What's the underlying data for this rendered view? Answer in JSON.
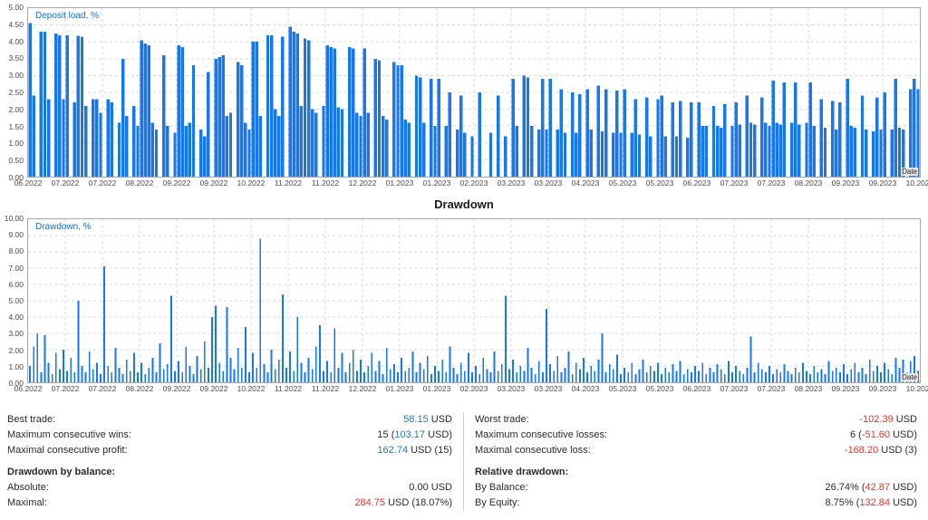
{
  "colors": {
    "bar_blue": "#1777ee",
    "chart_label_blue": "#0f6dd0",
    "positive_value": "#2e75b6",
    "negative_value": "#d9392e",
    "grid": "#d9d9d9",
    "axis_text": "#4d4d4d"
  },
  "section_title": "Drawdown",
  "chart_data": [
    {
      "id": "deposit",
      "type": "bar",
      "label": "Deposit load, %",
      "axis_name": "Date",
      "ymax": 5.0,
      "ylim": [
        0,
        5
      ],
      "grid": true,
      "bar_style": "block",
      "y_ticks": [
        "5.00",
        "4.50",
        "4.00",
        "3.50",
        "3.00",
        "2.50",
        "2.00",
        "1.50",
        "1.00",
        "0.50",
        "0.00"
      ],
      "x_ticks": [
        "06.2022",
        "07.2022",
        "07.2022",
        "08.2022",
        "09.2022",
        "09.2022",
        "10.2022",
        "11.2022",
        "11.2022",
        "12.2022",
        "01.2023",
        "01.2023",
        "02.2023",
        "03.2023",
        "03.2023",
        "04.2023",
        "05.2023",
        "05.2023",
        "06.2023",
        "07.2023",
        "07.2023",
        "08.2023",
        "09.2023",
        "09.2023",
        "10.2023"
      ],
      "values": [
        4.55,
        2.4,
        0,
        4.3,
        4.3,
        2.3,
        0,
        4.25,
        4.2,
        2.3,
        4.2,
        0,
        2.2,
        4.18,
        4.15,
        2.1,
        0,
        2.3,
        2.3,
        1.9,
        0,
        2.3,
        2.2,
        0,
        1.6,
        3.5,
        1.8,
        0,
        2.1,
        1.5,
        4.05,
        3.95,
        3.9,
        1.6,
        1.4,
        0,
        3.6,
        1.5,
        0,
        1.3,
        3.9,
        3.85,
        1.5,
        1.6,
        3.3,
        0,
        1.4,
        1.2,
        3.1,
        0,
        3.5,
        3.55,
        3.6,
        1.8,
        1.9,
        0,
        3.4,
        3.3,
        1.6,
        1.4,
        4.0,
        4.0,
        1.8,
        0,
        4.2,
        4.2,
        2.0,
        1.8,
        4.15,
        0,
        4.45,
        4.3,
        4.25,
        2.1,
        4.1,
        4.05,
        2.0,
        1.9,
        0,
        2.1,
        3.9,
        3.85,
        3.8,
        2.05,
        2.0,
        0,
        3.85,
        3.8,
        1.9,
        1.8,
        3.8,
        1.9,
        0,
        3.5,
        3.45,
        1.8,
        1.7,
        0,
        3.4,
        3.3,
        3.3,
        1.7,
        1.6,
        0,
        3.0,
        2.95,
        1.6,
        0,
        2.9,
        1.5,
        2.9,
        0,
        1.5,
        2.5,
        0,
        1.4,
        2.4,
        1.3,
        0,
        1.2,
        0,
        2.5,
        0,
        0,
        1.3,
        0,
        2.4,
        0,
        1.2,
        0,
        2.9,
        1.5,
        0,
        3.0,
        2.95,
        1.5,
        0,
        1.4,
        2.9,
        1.4,
        2.9,
        0,
        1.4,
        2.6,
        1.3,
        0,
        2.5,
        1.3,
        2.45,
        0,
        2.6,
        1.4,
        0,
        2.7,
        1.35,
        2.6,
        0,
        1.3,
        2.55,
        1.3,
        2.6,
        0,
        1.3,
        2.3,
        1.25,
        0,
        2.35,
        1.2,
        0,
        2.3,
        2.4,
        1.2,
        0,
        2.2,
        1.2,
        2.25,
        0,
        1.15,
        2.2,
        0,
        2.2,
        1.5,
        1.5,
        0,
        2.1,
        1.5,
        1.45,
        2.15,
        0,
        1.5,
        2.2,
        1.55,
        0,
        2.4,
        1.6,
        1.55,
        0,
        2.35,
        1.6,
        1.5,
        2.85,
        1.6,
        1.55,
        2.8,
        0,
        1.6,
        2.8,
        1.55,
        0,
        1.6,
        2.8,
        1.5,
        0,
        2.3,
        1.45,
        0,
        2.25,
        1.4,
        2.2,
        0,
        2.9,
        1.5,
        1.45,
        0,
        2.4,
        1.4,
        0,
        1.35,
        2.35,
        1.4,
        2.5,
        0,
        1.4,
        2.9,
        1.45,
        1.4,
        0,
        2.6,
        2.9,
        2.6
      ]
    },
    {
      "id": "drawdown",
      "type": "bar",
      "label": "Drawdown, %",
      "axis_name": "Date",
      "ymax": 10.0,
      "ylim": [
        0,
        10
      ],
      "grid": true,
      "bar_style": "thin",
      "y_ticks": [
        "10.00",
        "9.00",
        "8.00",
        "7.00",
        "6.00",
        "5.00",
        "4.00",
        "3.00",
        "2.00",
        "1.00",
        "0.00"
      ],
      "x_ticks": [
        "06.2022",
        "07.2022",
        "07.2022",
        "08.2022",
        "09.2022",
        "09.2022",
        "10.2022",
        "11.2022",
        "11.2022",
        "12.2022",
        "01.2023",
        "01.2023",
        "02.2023",
        "03.2023",
        "03.2023",
        "04.2023",
        "05.2023",
        "05.2023",
        "06.2023",
        "07.2023",
        "07.2023",
        "08.2023",
        "09.2023",
        "09.2023",
        "10.2023"
      ],
      "values": [
        1.0,
        2.2,
        3.0,
        0.6,
        2.9,
        1.2,
        0.5,
        1.8,
        0.8,
        2.0,
        0.7,
        1.5,
        0.6,
        5.0,
        1.0,
        0.6,
        1.9,
        0.8,
        1.2,
        0.5,
        7.1,
        1.0,
        0.6,
        2.1,
        0.9,
        0.5,
        1.4,
        0.7,
        1.8,
        0.6,
        1.2,
        0.5,
        0.9,
        1.5,
        0.6,
        2.4,
        0.8,
        1.1,
        5.3,
        0.7,
        1.3,
        0.6,
        2.2,
        1.0,
        0.5,
        1.6,
        0.8,
        2.5,
        0.9,
        4.0,
        4.7,
        1.2,
        0.7,
        4.6,
        1.5,
        0.8,
        2.1,
        0.9,
        3.4,
        0.6,
        1.8,
        0.9,
        8.8,
        1.1,
        0.6,
        2.0,
        0.8,
        1.4,
        5.4,
        0.9,
        1.9,
        0.7,
        4.0,
        1.2,
        0.6,
        1.5,
        0.8,
        2.2,
        3.5,
        0.7,
        1.3,
        0.6,
        3.3,
        0.9,
        1.8,
        0.6,
        1.2,
        2.0,
        0.7,
        1.4,
        0.6,
        1.0,
        1.8,
        0.7,
        1.3,
        0.5,
        2.1,
        0.8,
        1.1,
        0.6,
        1.5,
        0.7,
        0.9,
        1.9,
        0.6,
        1.2,
        0.8,
        1.6,
        0.5,
        1.0,
        0.7,
        1.4,
        0.6,
        2.2,
        0.9,
        0.5,
        1.2,
        0.7,
        1.8,
        0.6,
        1.0,
        0.5,
        1.5,
        0.8,
        0.6,
        1.9,
        0.7,
        1.1,
        5.3,
        0.8,
        1.4,
        0.6,
        1.0,
        0.7,
        2.1,
        0.9,
        0.5,
        1.3,
        0.6,
        4.5,
        1.1,
        0.7,
        1.6,
        0.6,
        0.9,
        1.9,
        0.5,
        1.2,
        0.8,
        1.5,
        0.6,
        1.0,
        0.7,
        1.4,
        3.0,
        0.6,
        1.1,
        0.8,
        1.7,
        0.5,
        0.9,
        0.6,
        1.2,
        0.5,
        0.8,
        1.4,
        0.6,
        1.0,
        0.7,
        1.2,
        0.5,
        0.9,
        0.6,
        1.1,
        0.7,
        1.3,
        0.5,
        0.8,
        0.6,
        1.0,
        0.7,
        1.2,
        0.5,
        0.9,
        0.6,
        1.1,
        0.8,
        0.5,
        1.3,
        0.6,
        1.0,
        0.7,
        0.5,
        0.9,
        2.8,
        0.6,
        1.2,
        0.8,
        0.6,
        1.0,
        0.5,
        0.8,
        0.6,
        1.1,
        0.7,
        0.5,
        0.9,
        0.6,
        1.2,
        0.7,
        0.5,
        1.0,
        0.6,
        0.8,
        0.5,
        1.3,
        0.7,
        0.9,
        0.6,
        1.1,
        0.5,
        0.8,
        1.2,
        0.6,
        0.9,
        0.5,
        1.4,
        0.7,
        1.0,
        0.6,
        1.2,
        0.8,
        0.5,
        1.5,
        0.9,
        1.4,
        0.6,
        1.3,
        1.6,
        0.7
      ]
    }
  ],
  "stats": {
    "left": [
      {
        "label": "Best trade:",
        "parts": [
          {
            "t": "58.15",
            "c": "pos"
          },
          {
            "t": " USD",
            "c": "plain"
          }
        ]
      },
      {
        "label": "Maximum consecutive wins:",
        "parts": [
          {
            "t": "15 (",
            "c": "plain"
          },
          {
            "t": "103.17",
            "c": "pos"
          },
          {
            "t": " USD)",
            "c": "plain"
          }
        ]
      },
      {
        "label": "Maximal consecutive profit:",
        "parts": [
          {
            "t": "162.74",
            "c": "pos"
          },
          {
            "t": " USD (15)",
            "c": "plain"
          }
        ]
      },
      {
        "header": "Drawdown by balance:"
      },
      {
        "label": "Absolute:",
        "parts": [
          {
            "t": "0.00 USD",
            "c": "plain"
          }
        ]
      },
      {
        "label": "Maximal:",
        "parts": [
          {
            "t": "284.75",
            "c": "neg"
          },
          {
            "t": " USD (18.07%)",
            "c": "plain"
          }
        ]
      }
    ],
    "right": [
      {
        "label": "Worst trade:",
        "parts": [
          {
            "t": "-102.39",
            "c": "neg"
          },
          {
            "t": " USD",
            "c": "plain"
          }
        ]
      },
      {
        "label": "Maximum consecutive losses:",
        "parts": [
          {
            "t": "6 (",
            "c": "plain"
          },
          {
            "t": "-51.60",
            "c": "neg"
          },
          {
            "t": " USD)",
            "c": "plain"
          }
        ]
      },
      {
        "label": "Maximal consecutive loss:",
        "parts": [
          {
            "t": "-168.20",
            "c": "neg"
          },
          {
            "t": " USD (3)",
            "c": "plain"
          }
        ]
      },
      {
        "header": "Relative drawdown:"
      },
      {
        "label": "By Balance:",
        "parts": [
          {
            "t": "26.74% (",
            "c": "plain"
          },
          {
            "t": "42.87",
            "c": "neg"
          },
          {
            "t": " USD)",
            "c": "plain"
          }
        ]
      },
      {
        "label": "By Equity:",
        "parts": [
          {
            "t": "8.75% (",
            "c": "plain"
          },
          {
            "t": "132.84",
            "c": "neg"
          },
          {
            "t": " USD)",
            "c": "plain"
          }
        ]
      }
    ]
  }
}
